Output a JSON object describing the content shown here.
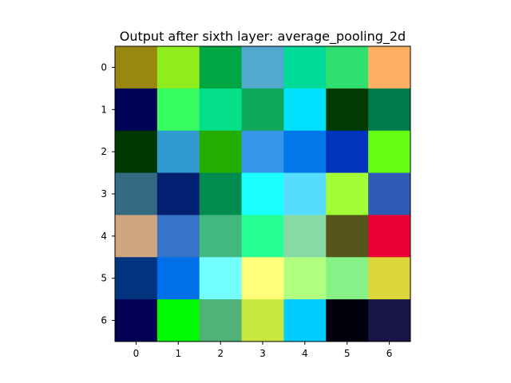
{
  "chart_data": {
    "type": "heatmap",
    "title": "Output after sixth layer: average_pooling_2d",
    "xlabel": "",
    "ylabel": "",
    "x_ticks": [
      "0",
      "1",
      "2",
      "3",
      "4",
      "5",
      "6"
    ],
    "y_ticks": [
      "0",
      "1",
      "2",
      "3",
      "4",
      "5",
      "6"
    ],
    "grid": false,
    "cells": [
      [
        "#99870f",
        "#8fed1d",
        "#00a642",
        "#52a9d0",
        "#00dc98",
        "#2ee070",
        "#ffaf62"
      ],
      [
        "#010158",
        "#36fc62",
        "#04df8a",
        "#0fa858",
        "#00e1fe",
        "#013b01",
        "#007a4b"
      ],
      [
        "#003700",
        "#3099cd",
        "#25ac00",
        "#3896ea",
        "#0078e8",
        "#0134bd",
        "#66ff14"
      ],
      [
        "#346a84",
        "#031f72",
        "#008b4f",
        "#1affff",
        "#55dcff",
        "#a2fd37",
        "#2e5cb5"
      ],
      [
        "#cfa67e",
        "#3774c8",
        "#42b77e",
        "#26ff91",
        "#88daa5",
        "#56561a",
        "#eb0034"
      ],
      [
        "#01347e",
        "#016fea",
        "#71ffff",
        "#ffff7c",
        "#b1ff7f",
        "#85f186",
        "#ddd63a"
      ],
      [
        "#010052",
        "#00fa01",
        "#50b276",
        "#c7e640",
        "#00cdff",
        "#00000d",
        "#181646"
      ]
    ]
  }
}
